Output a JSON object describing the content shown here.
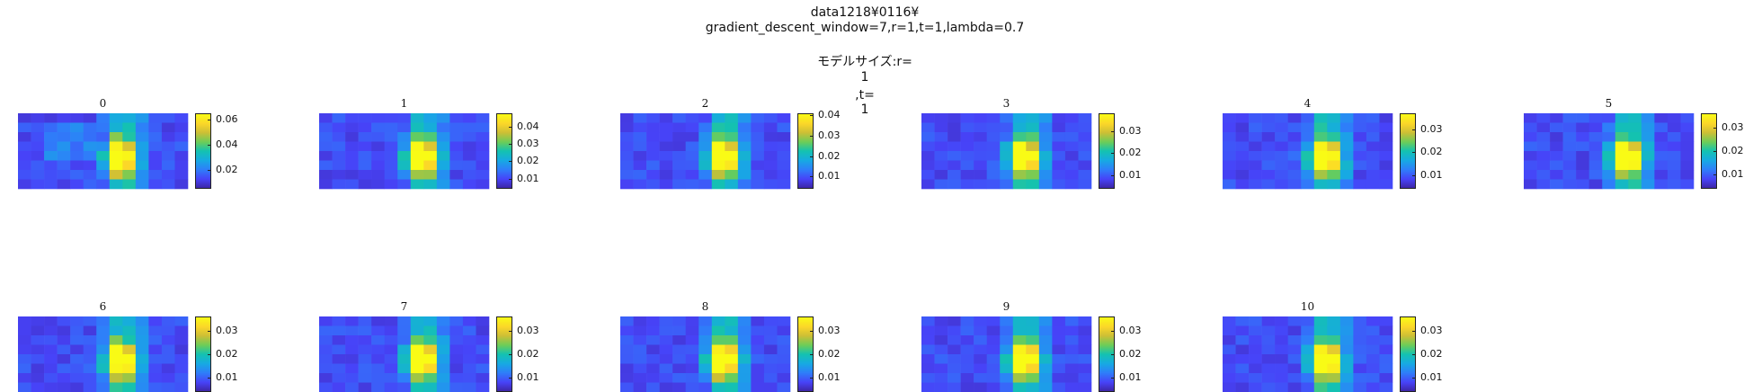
{
  "suptitle": {
    "line1": "data1218¥0116¥",
    "line2": "gradient_descent_window=7,r=1,t=1,lambda=0.7",
    "line3": "モデルサイズ:r=",
    "line4": "1",
    "line5": ",t=",
    "line6": "1"
  },
  "colors": {
    "colormap": [
      "#3e26a8",
      "#4743f8",
      "#2e7ff9",
      "#17a9e3",
      "#14c2b0",
      "#6bcd59",
      "#cdbf35",
      "#fbd629",
      "#f9fb15"
    ]
  },
  "chart_data": [
    {
      "type": "heatmap",
      "title": "0",
      "rows": 8,
      "cols": 13,
      "clim": [
        0.005,
        0.065
      ],
      "colorbar_ticks": [
        "0.06",
        "0.04",
        "0.02"
      ],
      "colorbar_tick_values": [
        0.06,
        0.04,
        0.02
      ]
    },
    {
      "type": "heatmap",
      "title": "1",
      "rows": 8,
      "cols": 13,
      "clim": [
        0.004,
        0.048
      ],
      "colorbar_ticks": [
        "0.04",
        "0.03",
        "0.02",
        "0.01"
      ],
      "colorbar_tick_values": [
        0.04,
        0.03,
        0.02,
        0.01
      ]
    },
    {
      "type": "heatmap",
      "title": "2",
      "rows": 8,
      "cols": 13,
      "clim": [
        0.004,
        0.041
      ],
      "colorbar_ticks": [
        "0.04",
        "0.03",
        "0.02",
        "0.01"
      ],
      "colorbar_tick_values": [
        0.04,
        0.03,
        0.02,
        0.01
      ]
    },
    {
      "type": "heatmap",
      "title": "3",
      "rows": 8,
      "cols": 13,
      "clim": [
        0.004,
        0.038
      ],
      "colorbar_ticks": [
        "0.03",
        "0.02",
        "0.01"
      ],
      "colorbar_tick_values": [
        0.03,
        0.02,
        0.01
      ]
    },
    {
      "type": "heatmap",
      "title": "4",
      "rows": 8,
      "cols": 13,
      "clim": [
        0.004,
        0.037
      ],
      "colorbar_ticks": [
        "0.03",
        "0.02",
        "0.01"
      ],
      "colorbar_tick_values": [
        0.03,
        0.02,
        0.01
      ]
    },
    {
      "type": "heatmap",
      "title": "5",
      "rows": 8,
      "cols": 13,
      "clim": [
        0.004,
        0.036
      ],
      "colorbar_ticks": [
        "0.03",
        "0.02",
        "0.01"
      ],
      "colorbar_tick_values": [
        0.03,
        0.02,
        0.01
      ]
    },
    {
      "type": "heatmap",
      "title": "6",
      "rows": 8,
      "cols": 13,
      "clim": [
        0.004,
        0.036
      ],
      "colorbar_ticks": [
        "0.03",
        "0.02",
        "0.01"
      ],
      "colorbar_tick_values": [
        0.03,
        0.02,
        0.01
      ]
    },
    {
      "type": "heatmap",
      "title": "7",
      "rows": 8,
      "cols": 13,
      "clim": [
        0.004,
        0.036
      ],
      "colorbar_ticks": [
        "0.03",
        "0.02",
        "0.01"
      ],
      "colorbar_tick_values": [
        0.03,
        0.02,
        0.01
      ]
    },
    {
      "type": "heatmap",
      "title": "8",
      "rows": 8,
      "cols": 13,
      "clim": [
        0.004,
        0.036
      ],
      "colorbar_ticks": [
        "0.03",
        "0.02",
        "0.01"
      ],
      "colorbar_tick_values": [
        0.03,
        0.02,
        0.01
      ]
    },
    {
      "type": "heatmap",
      "title": "9",
      "rows": 8,
      "cols": 13,
      "clim": [
        0.004,
        0.036
      ],
      "colorbar_ticks": [
        "0.03",
        "0.02",
        "0.01"
      ],
      "colorbar_tick_values": [
        0.03,
        0.02,
        0.01
      ]
    },
    {
      "type": "heatmap",
      "title": "10",
      "rows": 8,
      "cols": 13,
      "clim": [
        0.004,
        0.036
      ],
      "colorbar_ticks": [
        "0.03",
        "0.02",
        "0.01"
      ],
      "colorbar_tick_values": [
        0.03,
        0.02,
        0.01
      ]
    }
  ]
}
